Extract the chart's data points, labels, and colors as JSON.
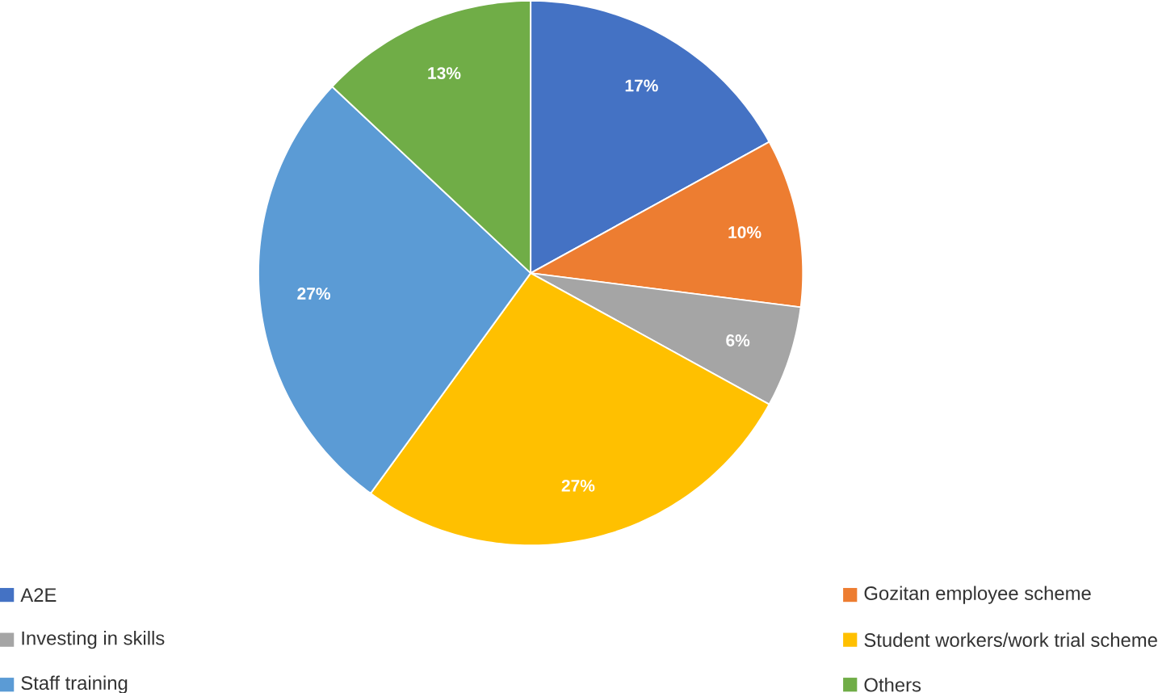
{
  "chart_data": {
    "type": "pie",
    "categories": [
      "A2E",
      "Gozitan employee scheme",
      "Investing in skills",
      "Student workers/work trial scheme",
      "Staff training",
      "Others"
    ],
    "values": [
      17,
      10,
      6,
      27,
      27,
      13
    ],
    "colors": [
      "#4472c4",
      "#ed7d31",
      "#a5a5a5",
      "#ffc000",
      "#5b9bd5",
      "#70ad47"
    ],
    "value_labels": [
      "17%",
      "10%",
      "6%",
      "27%",
      "27%",
      "13%"
    ],
    "legend": "bottom"
  }
}
